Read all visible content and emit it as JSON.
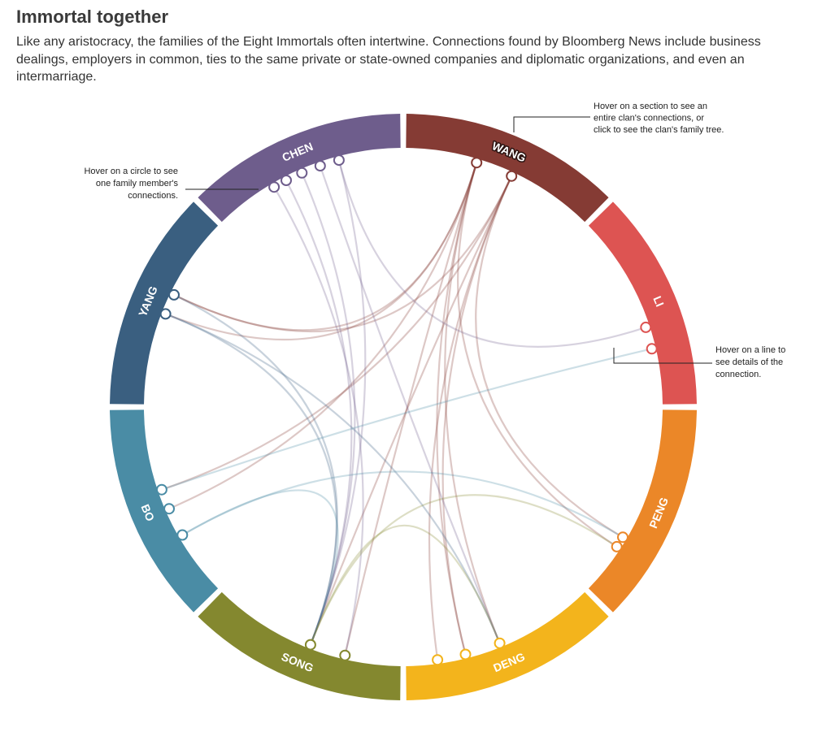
{
  "header": {
    "title": "Immortal together",
    "subtitle": "Like any aristocracy, the families of the Eight Immortals often intertwine. Connections found by Bloomberg News include business dealings, employers in common, ties to the same private or state-owned companies and diplomatic organizations, and even an intermarriage."
  },
  "annotations": {
    "section": [
      "Hover on a section to see an",
      "entire clan's connections, or",
      "click to see the clan's family tree."
    ],
    "circle": [
      "Hover on a circle to see",
      "one family member's",
      "connections."
    ],
    "line": [
      "Hover on a line to",
      "see details of the",
      "connection."
    ]
  },
  "clans": [
    {
      "id": "wang",
      "label": "WANG",
      "color": "#853B34",
      "start": 0,
      "end": 45,
      "highlighted": true
    },
    {
      "id": "li",
      "label": "LI",
      "color": "#DD5452",
      "start": 45,
      "end": 90
    },
    {
      "id": "peng",
      "label": "PENG",
      "color": "#EB8728",
      "start": 90,
      "end": 135
    },
    {
      "id": "deng",
      "label": "DENG",
      "color": "#F3B41C",
      "start": 135,
      "end": 180
    },
    {
      "id": "song",
      "label": "SONG",
      "color": "#84882F",
      "start": 180,
      "end": 225
    },
    {
      "id": "bo",
      "label": "BO",
      "color": "#4A8CA5",
      "start": 225,
      "end": 270
    },
    {
      "id": "yang",
      "label": "YANG",
      "color": "#3A5F80",
      "start": 270,
      "end": 315
    },
    {
      "id": "chen",
      "label": "CHEN",
      "color": "#6E5D8C",
      "start": 315,
      "end": 360
    }
  ],
  "members": [
    {
      "id": "w1",
      "clan": "wang",
      "angle": 16.7
    },
    {
      "id": "w2",
      "clan": "wang",
      "angle": 25.1
    },
    {
      "id": "l1",
      "clan": "li",
      "angle": 71.8
    },
    {
      "id": "l2",
      "clan": "li",
      "angle": 76.8
    },
    {
      "id": "p1",
      "clan": "peng",
      "angle": 120.7
    },
    {
      "id": "p2",
      "clan": "peng",
      "angle": 123.2
    },
    {
      "id": "d1",
      "clan": "deng",
      "angle": 157.8
    },
    {
      "id": "d2",
      "clan": "deng",
      "angle": 165.9
    },
    {
      "id": "d3",
      "clan": "deng",
      "angle": 172.3
    },
    {
      "id": "s1",
      "clan": "song",
      "angle": 193.2
    },
    {
      "id": "s2",
      "clan": "song",
      "angle": 201.3
    },
    {
      "id": "b1",
      "clan": "bo",
      "angle": 239.9
    },
    {
      "id": "b2",
      "clan": "bo",
      "angle": 246.5
    },
    {
      "id": "b3",
      "clan": "bo",
      "angle": 251.1
    },
    {
      "id": "y1",
      "clan": "yang",
      "angle": 291.4
    },
    {
      "id": "y2",
      "clan": "yang",
      "angle": 296.1
    },
    {
      "id": "c1",
      "clan": "chen",
      "angle": 329.6
    },
    {
      "id": "c2",
      "clan": "chen",
      "angle": 332.7
    },
    {
      "id": "c3",
      "clan": "chen",
      "angle": 336.6
    },
    {
      "id": "c4",
      "clan": "chen",
      "angle": 341.0
    },
    {
      "id": "c5",
      "clan": "chen",
      "angle": 345.4
    }
  ],
  "connections": [
    {
      "source": "w1",
      "target": "y2"
    },
    {
      "source": "w1",
      "target": "y1"
    },
    {
      "source": "w1",
      "target": "b2"
    },
    {
      "source": "w1",
      "target": "s1"
    },
    {
      "source": "w1",
      "target": "d1"
    },
    {
      "source": "w1",
      "target": "d2"
    },
    {
      "source": "w1",
      "target": "p2"
    },
    {
      "source": "w2",
      "target": "y2"
    },
    {
      "source": "w2",
      "target": "b3"
    },
    {
      "source": "w2",
      "target": "s2"
    },
    {
      "source": "w2",
      "target": "d2"
    },
    {
      "source": "w2",
      "target": "d3"
    },
    {
      "source": "w2",
      "target": "p1"
    },
    {
      "source": "c1",
      "target": "s1"
    },
    {
      "source": "c2",
      "target": "s2"
    },
    {
      "source": "c3",
      "target": "s2"
    },
    {
      "source": "c4",
      "target": "d1"
    },
    {
      "source": "c5",
      "target": "l1"
    },
    {
      "source": "c5",
      "target": "s2"
    },
    {
      "source": "y1",
      "target": "s2"
    },
    {
      "source": "y1",
      "target": "d1"
    },
    {
      "source": "y2",
      "target": "s2"
    },
    {
      "source": "b1",
      "target": "s2"
    },
    {
      "source": "b1",
      "target": "p1"
    },
    {
      "source": "b3",
      "target": "l2"
    },
    {
      "source": "s2",
      "target": "d1"
    },
    {
      "source": "s2",
      "target": "p2"
    }
  ]
}
